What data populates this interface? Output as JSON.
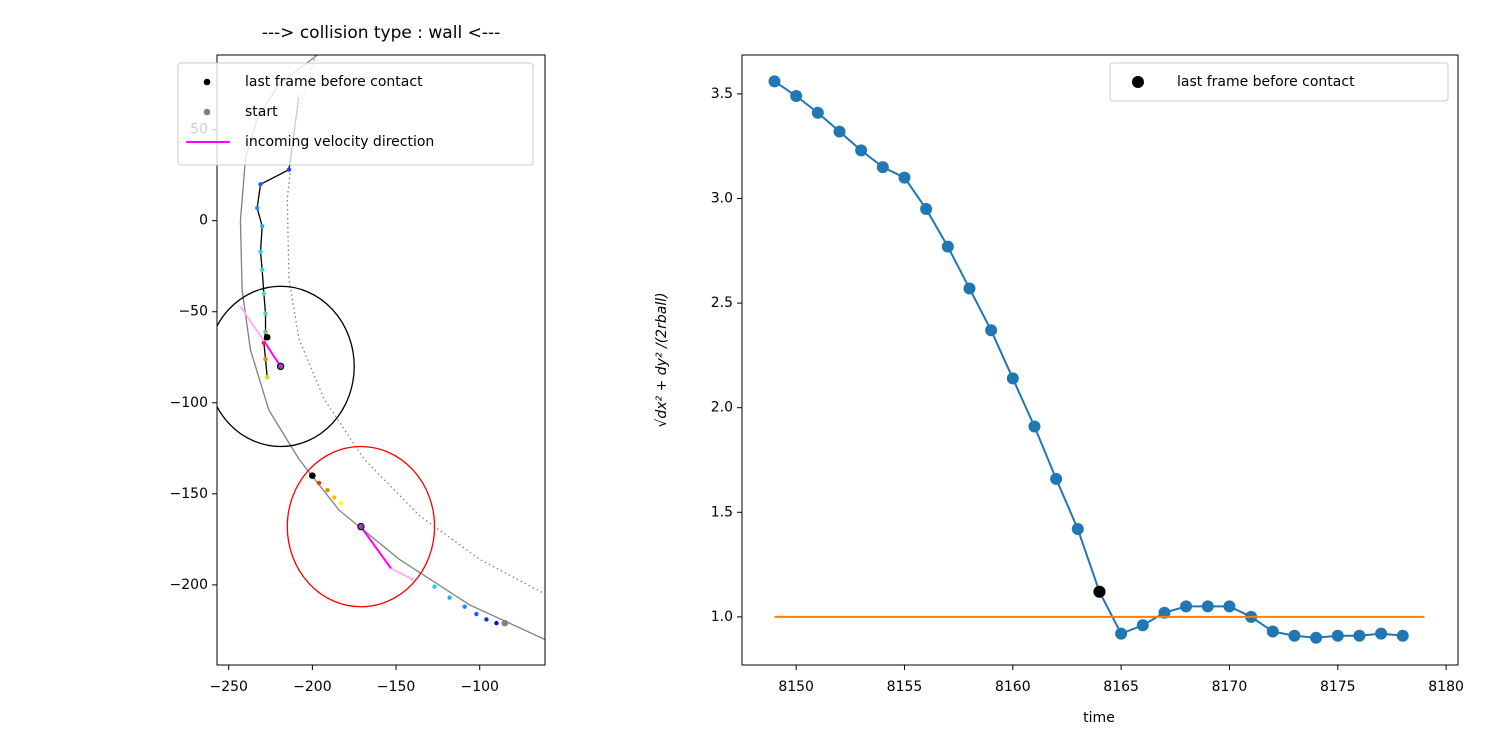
{
  "chart_data": [
    {
      "type": "trajectory",
      "title": "---> collision type : wall <---",
      "xlim": [
        -257,
        -61
      ],
      "ylim": [
        -244,
        91
      ],
      "xticks": [
        {
          "value": -250,
          "label": "−250"
        },
        {
          "value": -200,
          "label": "−200"
        },
        {
          "value": -150,
          "label": "−150"
        },
        {
          "value": -100,
          "label": "−100"
        }
      ],
      "yticks": [
        {
          "value": -200,
          "label": "−200"
        },
        {
          "value": -150,
          "label": "−150"
        },
        {
          "value": -100,
          "label": "−100"
        },
        {
          "value": -50,
          "label": "−50"
        },
        0,
        50
      ],
      "legend": "upper right",
      "boundaries": [
        {
          "color": "#808080",
          "style": "solid",
          "x": [
            -197,
            -220,
            -233,
            -240,
            -243,
            -242,
            -237,
            -226,
            -208,
            -184,
            -148,
            -106,
            -61
          ],
          "y": [
            91,
            75,
            56,
            34,
            0,
            -38,
            -71,
            -104,
            -131,
            -159,
            -186,
            -211,
            -230
          ]
        },
        {
          "color": "#808080",
          "style": "dotted",
          "x": [
            -198,
            -210,
            -215,
            -214,
            -208,
            -193,
            -169,
            -136,
            -100,
            -61
          ],
          "y": [
            91,
            55,
            12,
            -32,
            -65,
            -98,
            -131,
            -162,
            -186,
            -205
          ]
        }
      ],
      "circles": [
        {
          "x": -219,
          "y": -80,
          "r": 44,
          "color": "#000000"
        },
        {
          "x": -171,
          "y": -168,
          "r": 44,
          "color": "#ff0000"
        }
      ],
      "tracks": [
        {
          "line_color": "#000000",
          "x": [
            -208,
            -214,
            -231,
            -233,
            -230,
            -231,
            -230,
            -229,
            -228,
            -228,
            -229,
            -228,
            -227
          ],
          "y": [
            69,
            28,
            20,
            7,
            -3,
            -17,
            -27,
            -40,
            -51,
            -61,
            -67,
            -76,
            -86
          ],
          "colors": [
            "#e6d8ff",
            "#1f3fff",
            "#1f5fff",
            "#1a8cff",
            "#1cb0f0",
            "#20d8e8",
            "#28e0d0",
            "#40e0b0",
            "#50d890",
            "#60d060",
            "#ff2000",
            "#ff8000",
            "#b0f020"
          ]
        },
        {
          "x": [
            -196,
            -191,
            -187,
            -183,
            -140,
            -127,
            -118,
            -109,
            -102,
            -96,
            -90
          ],
          "y": [
            -144,
            -148,
            -152,
            -155,
            -197,
            -201,
            -207,
            -212,
            -216,
            -219,
            -221
          ],
          "colors": [
            "#ff3000",
            "#ff8000",
            "#ffc000",
            "#ffff00",
            "#f0c8f0",
            "#20d0f0",
            "#10b8f0",
            "#1090ff",
            "#1060ff",
            "#1030ff",
            "#0010ff"
          ]
        }
      ],
      "lines": [
        {
          "name": "incoming velocity direction",
          "color": "#ff00ff",
          "x": [
            -219,
            -229
          ],
          "y": [
            -80,
            -66
          ]
        },
        {
          "color": "#ff00ff",
          "x": [
            -171,
            -153
          ],
          "y": [
            -168,
            -191
          ]
        },
        {
          "color": "#ffb0f0",
          "x": [
            -229,
            -243
          ],
          "y": [
            -66,
            -47
          ]
        },
        {
          "color": "#ffb0f0",
          "x": [
            -153,
            -140
          ],
          "y": [
            -191,
            -197
          ]
        }
      ],
      "markers": [
        {
          "name": "last frame before contact",
          "color": "#000000",
          "x": [
            -227,
            -200
          ],
          "y": [
            -64,
            -140
          ]
        },
        {
          "name": "start",
          "color": "#808080",
          "x": [
            -85
          ],
          "y": [
            -221
          ]
        }
      ]
    },
    {
      "type": "line",
      "xlabel": "time",
      "ylabel": "√dx² + dy² /(2rball)",
      "xlim": [
        8147.5,
        8180.55
      ],
      "ylim": [
        0.77,
        3.686
      ],
      "xticks": [
        8150,
        8155,
        8160,
        8165,
        8170,
        8175,
        8180
      ],
      "yticks": [
        {
          "value": 1,
          "label": "1.0"
        },
        1.5,
        {
          "value": 2,
          "label": "2.0"
        },
        2.5,
        {
          "value": 3,
          "label": "3.0"
        },
        3.5
      ],
      "legend": "upper right",
      "series": [
        {
          "color": "#1f77b4",
          "line": true,
          "markers": true,
          "x": [
            8149,
            8150,
            8151,
            8152,
            8153,
            8154,
            8155,
            8156,
            8157,
            8158,
            8159,
            8160,
            8161,
            8162,
            8163,
            8164,
            8165,
            8166,
            8167,
            8168,
            8169,
            8170,
            8171,
            8172,
            8173,
            8174,
            8175,
            8176,
            8177,
            8178
          ],
          "values": [
            3.56,
            3.49,
            3.41,
            3.32,
            3.23,
            3.15,
            3.1,
            2.95,
            2.77,
            2.57,
            2.37,
            2.14,
            1.91,
            1.66,
            1.42,
            1.12,
            0.92,
            0.96,
            1.02,
            1.05,
            1.05,
            1.05,
            1.0,
            0.93,
            0.91,
            0.9,
            0.91,
            0.91,
            0.92,
            0.91
          ]
        },
        {
          "name": "last frame before contact",
          "color": "#000000",
          "line": false,
          "markers": true,
          "x": [
            8164
          ],
          "values": [
            1.12
          ]
        },
        {
          "color": "#ff7f0e",
          "line": true,
          "markers": false,
          "x": [
            8149,
            8179
          ],
          "values": [
            1,
            1
          ]
        }
      ]
    }
  ]
}
